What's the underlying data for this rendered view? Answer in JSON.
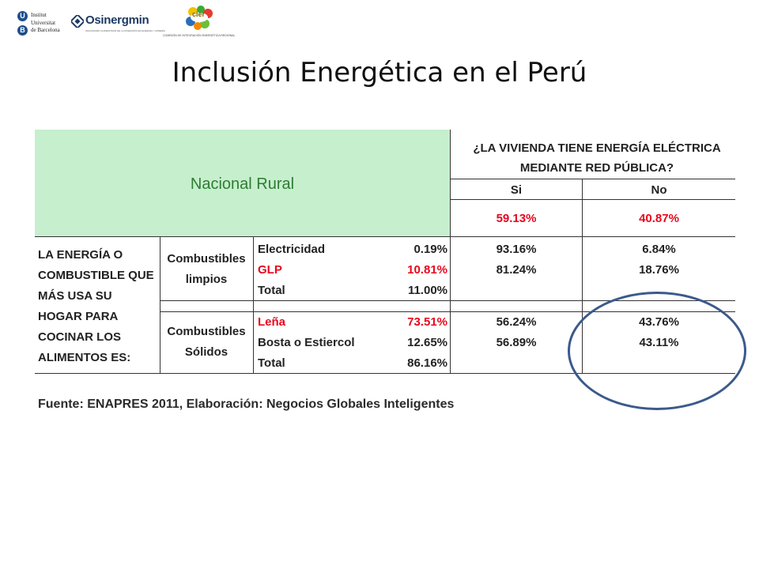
{
  "logos": {
    "ub": {
      "lines": [
        "Institut",
        "Universitat",
        "de Barcelona"
      ]
    },
    "osinergmin": {
      "name": "Osinergmin",
      "tagline": "ORGANISMO SUPERVISOR DE LA INVERSIÓN EN ENERGÍA Y MINERÍA"
    },
    "cier": {
      "name": "cier",
      "tagline": "COMISIÓN DE INTEGRACIÓN ENERGÉTICA REGIONAL"
    }
  },
  "title": "Inclusión Energética en el Perú",
  "table": {
    "header_left": "Nacional Rural",
    "question": [
      "¿LA VIVIENDA TIENE ENERGÍA ELÉCTRICA",
      "MEDIANTE RED PÚBLICA?"
    ],
    "col_si": "Si",
    "col_no": "No",
    "total_si": "59.13%",
    "total_no": "40.87%",
    "row_label": [
      "LA ENERGÍA O",
      "COMBUSTIBLE QUE",
      "MÁS USA SU",
      "HOGAR PARA",
      "COCINAR LOS",
      "ALIMENTOS ES:"
    ],
    "groups": [
      {
        "name": [
          "Combustibles",
          "limpios"
        ],
        "rows": [
          {
            "label": "Electricidad",
            "pct": "0.19%",
            "si": "93.16%",
            "no": "6.84%",
            "highlight": false
          },
          {
            "label": "GLP",
            "pct": "10.81%",
            "si": "81.24%",
            "no": "18.76%",
            "highlight": true
          },
          {
            "label": "Total",
            "pct": "11.00%",
            "si": "",
            "no": "",
            "highlight": false
          }
        ]
      },
      {
        "name": [
          "Combustibles",
          "Sólidos"
        ],
        "rows": [
          {
            "label": "Leña",
            "pct": "73.51%",
            "si": "56.24%",
            "no": "43.76%",
            "highlight": true
          },
          {
            "label": "Bosta o Estiercol",
            "pct": "12.65%",
            "si": "56.89%",
            "no": "43.11%",
            "highlight": false
          },
          {
            "label": "Total",
            "pct": "86.16%",
            "si": "",
            "no": "",
            "highlight": false
          }
        ]
      }
    ]
  },
  "source": "Fuente: ENAPRES 2011, Elaboración: Negocios Globales Inteligentes",
  "colors": {
    "header_fill": "#c6efce",
    "header_text": "#2e7d32",
    "highlight": "#e8061c",
    "circle": "#3b5a8c"
  }
}
